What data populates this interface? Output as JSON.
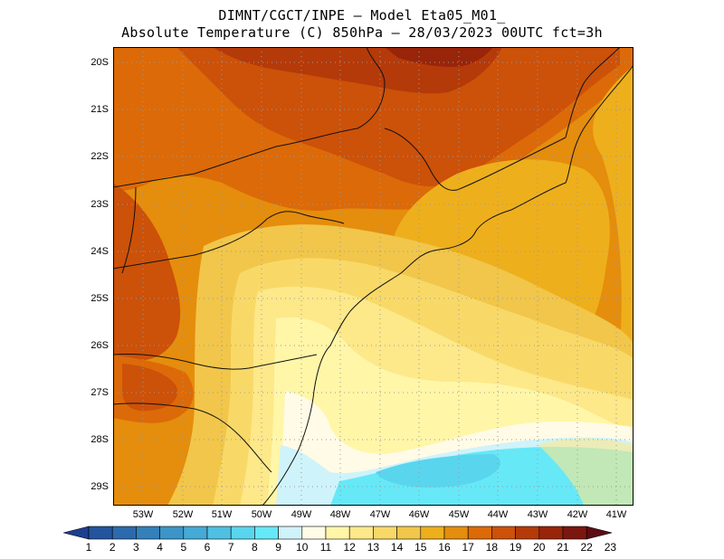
{
  "header": {
    "line1": "DIMNT/CGCT/INPE –  Model Eta05_M01_",
    "line2": "Absolute Temperature (C) 850hPa –  28/03/2023 00UTC fct=3h"
  },
  "map": {
    "lat_labels": [
      "20S",
      "21S",
      "22S",
      "23S",
      "24S",
      "25S",
      "26S",
      "27S",
      "28S",
      "29S"
    ],
    "lon_labels": [
      "53W",
      "52W",
      "51W",
      "50W",
      "49W",
      "48W",
      "47W",
      "46W",
      "45W",
      "44W",
      "43W",
      "42W",
      "41W"
    ]
  },
  "colorbar": {
    "labels": [
      "1",
      "2",
      "3",
      "4",
      "5",
      "6",
      "7",
      "8",
      "9",
      "10",
      "11",
      "12",
      "13",
      "14",
      "15",
      "16",
      "17",
      "18",
      "19",
      "20",
      "21",
      "22",
      "23"
    ],
    "colors": [
      "#1c3f8f",
      "#24549e",
      "#2c6aad",
      "#3480bb",
      "#3c95c8",
      "#45aad6",
      "#4fc0e2",
      "#5ad5ee",
      "#66e8f7",
      "#cff3fa",
      "#fffbe6",
      "#fff6a8",
      "#fde88a",
      "#f8d968",
      "#f1c64a",
      "#eeaf1c",
      "#e58d0c",
      "#dc6a08",
      "#cc5109",
      "#b53a09",
      "#98250a",
      "#7c1710",
      "#5c0c14"
    ]
  }
}
